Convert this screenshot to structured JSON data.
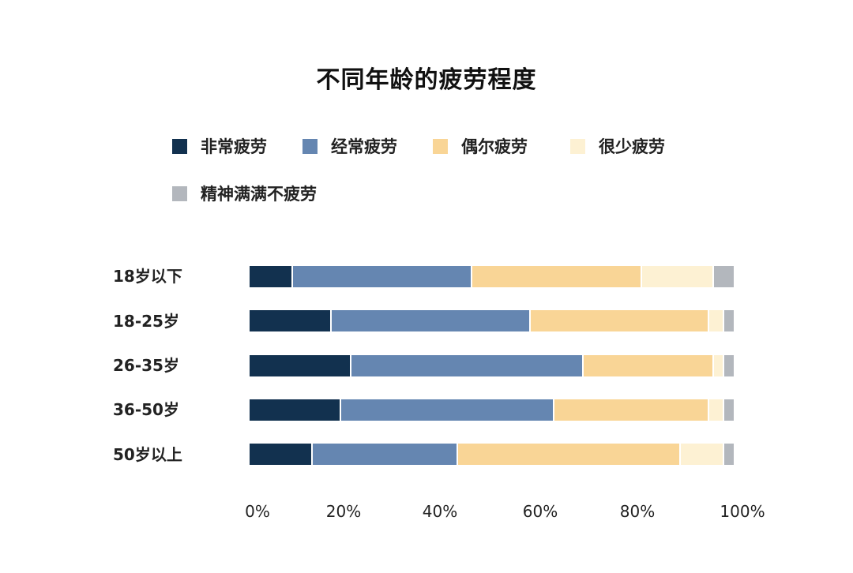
{
  "chart_data": {
    "type": "bar",
    "orientation": "horizontal",
    "stacked": true,
    "normalized": true,
    "title": "不同年龄的疲劳程度",
    "xlabel": "",
    "ylabel": "",
    "xlim": [
      0,
      100
    ],
    "x_ticks": [
      "0%",
      "20%",
      "40%",
      "60%",
      "80%",
      "100%"
    ],
    "grid": false,
    "legend_position": "top",
    "categories": [
      "18岁以下",
      "18-25岁",
      "26-35岁",
      "36-50岁",
      "50岁以上"
    ],
    "series": [
      {
        "name": "非常疲劳",
        "color": "#12314f",
        "values": [
          9,
          17,
          21,
          19,
          13
        ]
      },
      {
        "name": "经常疲劳",
        "color": "#6586b1",
        "values": [
          37,
          41,
          48,
          44,
          30
        ]
      },
      {
        "name": "偶尔疲劳",
        "color": "#f9d596",
        "values": [
          35,
          37,
          27,
          32,
          46
        ]
      },
      {
        "name": "很少疲劳",
        "color": "#fdf1d3",
        "values": [
          15,
          3,
          2,
          3,
          9
        ]
      },
      {
        "name": "精神满满不疲劳",
        "color": "#b3b7bd",
        "values": [
          4,
          2,
          2,
          2,
          2
        ]
      }
    ]
  },
  "title": "不同年龄的疲劳程度",
  "legend": [
    {
      "label": "非常疲劳",
      "color": "#12314f"
    },
    {
      "label": "经常疲劳",
      "color": "#6586b1"
    },
    {
      "label": "偶尔疲劳",
      "color": "#f9d596"
    },
    {
      "label": "很少疲劳",
      "color": "#fdf1d3"
    },
    {
      "label": "精神满满不疲劳",
      "color": "#b3b7bd"
    }
  ],
  "rows": [
    "18岁以下",
    "18-25岁",
    "26-35岁",
    "36-50岁",
    "50岁以上"
  ],
  "ticks": [
    "0%",
    "20%",
    "40%",
    "60%",
    "80%",
    "100%"
  ]
}
